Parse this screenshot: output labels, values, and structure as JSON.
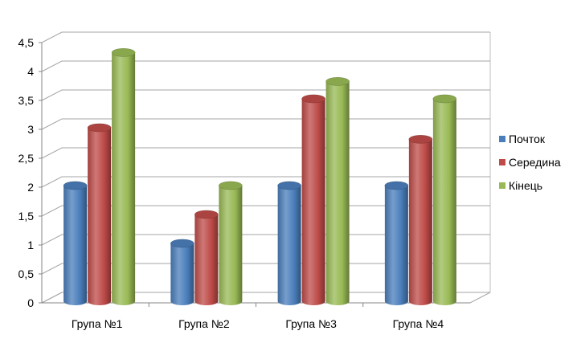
{
  "chart_data": {
    "type": "bar",
    "style": "3d-cylinder",
    "categories": [
      "Група №1",
      "Група №2",
      "Група №3",
      "Група №4"
    ],
    "series": [
      {
        "name": "Почток",
        "color": "#4a7ebb",
        "values": [
          2,
          1,
          2,
          2
        ]
      },
      {
        "name": "Середина",
        "color": "#be4b48",
        "values": [
          3,
          1.5,
          3.5,
          2.8
        ]
      },
      {
        "name": "Кінець",
        "color": "#98b954",
        "values": [
          4.3,
          2,
          3.8,
          3.5
        ]
      }
    ],
    "y_ticks": [
      "0",
      "0,5",
      "1",
      "1,5",
      "2",
      "2,5",
      "3",
      "3,5",
      "4",
      "4,5"
    ],
    "ylim": [
      0,
      4.5
    ],
    "grid": true,
    "legend_position": "right"
  }
}
